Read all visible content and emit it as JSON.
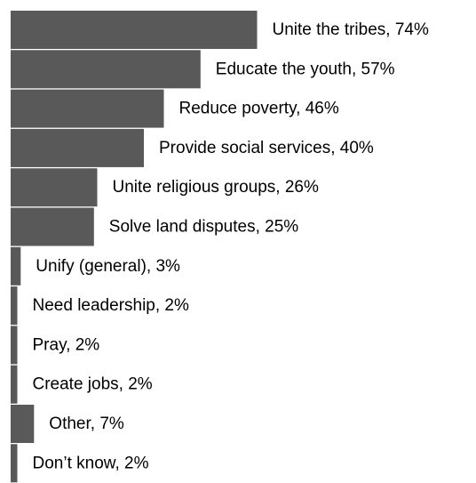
{
  "chart_data": {
    "type": "bar",
    "orientation": "horizontal",
    "title": "",
    "xlabel": "",
    "ylabel": "",
    "grid": false,
    "xlim": [
      0,
      100
    ],
    "bar_color": "#595959",
    "categories": [
      "Unite the tribes",
      "Educate the youth",
      "Reduce poverty",
      "Provide social services",
      "Unite religious groups",
      "Solve land disputes",
      "Unify (general)",
      "Need leadership",
      "Pray",
      "Create jobs",
      "Other",
      "Don’t know"
    ],
    "values": [
      74,
      57,
      46,
      40,
      26,
      25,
      3,
      2,
      2,
      2,
      7,
      2
    ],
    "labels": [
      "Unite the tribes, 74%",
      "Educate the youth, 57%",
      "Reduce poverty, 46%",
      "Provide social services, 40%",
      "Unite religious groups, 26%",
      "Solve land disputes, 25%",
      "Unify (general), 3%",
      "Need leadership, 2%",
      "Pray, 2%",
      "Create jobs, 2%",
      "Other, 7%",
      "Don’t know, 2%"
    ]
  }
}
